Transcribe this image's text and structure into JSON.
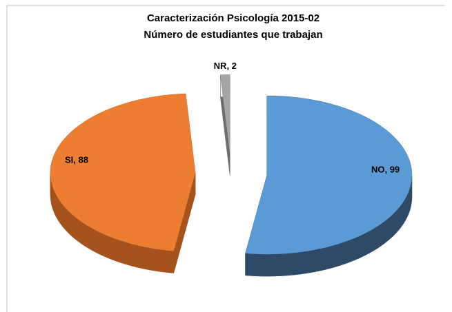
{
  "chart_data": {
    "type": "pie",
    "title": "Caracterización Psicología 2015-02",
    "subtitle": "Número de estudiantes que trabajan",
    "values": [
      99,
      88,
      2
    ],
    "value_labels": [
      "NO, 99",
      "SI, 88",
      "NR, 2"
    ],
    "colors": [
      "#5b9bd5",
      "#ed7d31",
      "#a5a5a5"
    ],
    "side_colors": [
      "#2e4a66",
      "#a5521c",
      "#6e6e6e"
    ]
  }
}
